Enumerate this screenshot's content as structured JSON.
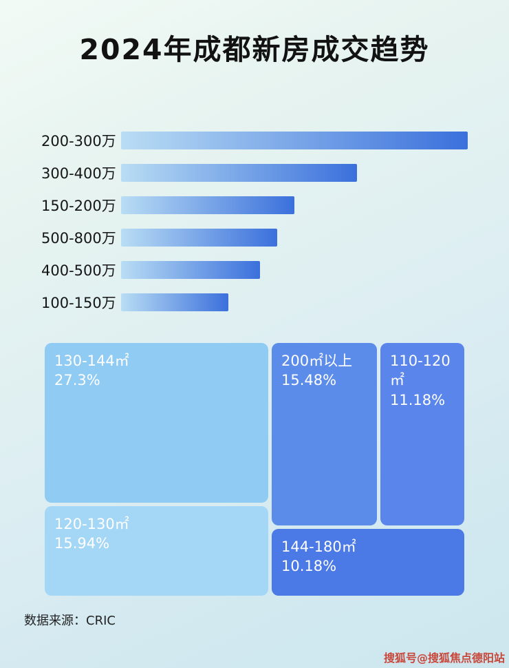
{
  "header": {
    "title": "2024年成都新房成交趋势"
  },
  "footer": {
    "source": "数据来源：CRIC",
    "watermark": "搜狐号@搜狐焦点德阳站"
  },
  "colors": {
    "bar_gradient_from": "#b9ddf4",
    "bar_gradient_to": "#3b70dc",
    "title_text": "#121212",
    "treemap_text": "#ffffff",
    "watermark_text": "#c8473a"
  },
  "chart_data": [
    {
      "type": "bar",
      "orientation": "horizontal",
      "title": "2024年成都新房成交趋势",
      "categories": [
        "200-300万",
        "300-400万",
        "150-200万",
        "500-800万",
        "400-500万",
        "100-150万"
      ],
      "values": [
        100,
        68,
        50,
        45,
        40,
        31
      ],
      "value_unit": "relative length, % of longest bar (no numeric labels shown)",
      "xlabel": "",
      "ylabel": "",
      "grid": false,
      "legend": false,
      "data_labels": false
    },
    {
      "type": "treemap",
      "title": "",
      "items": [
        {
          "label": "130-144㎡",
          "percent": "27.3%",
          "value": 27.3,
          "color": "#8fcbf3"
        },
        {
          "label": "200㎡以上",
          "percent": "15.48%",
          "value": 15.48,
          "color": "#5c8ce9"
        },
        {
          "label": "110-120㎡",
          "percent": "11.18%",
          "value": 11.18,
          "color": "#5a85ea"
        },
        {
          "label": "120-130㎡",
          "percent": "15.94%",
          "value": 15.94,
          "color": "#a4d6f6"
        },
        {
          "label": "144-180㎡",
          "percent": "10.18%",
          "value": 10.18,
          "color": "#4b79e6"
        }
      ]
    }
  ]
}
